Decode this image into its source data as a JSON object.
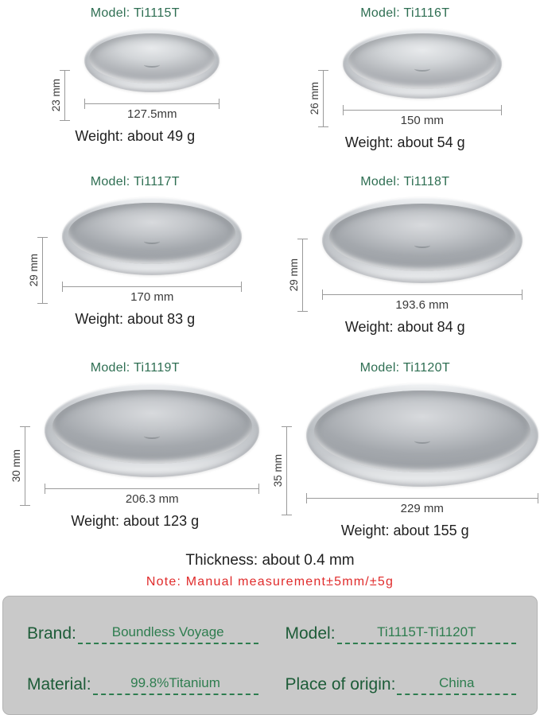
{
  "colors": {
    "model_title_green": "#2e6e52",
    "label_green": "#1d5c38",
    "value_green": "#2e7d4f",
    "note_red": "#e02b2b",
    "dimension_gray": "#9a9a9a",
    "text_dark": "#1f1f1f",
    "info_box_bg": "#c9c9c9"
  },
  "plates": [
    {
      "model_label": "Model: Ti1115T",
      "height": "23 mm",
      "diameter": "127.5mm",
      "weight": "Weight: about 49 g"
    },
    {
      "model_label": "Model: Ti1116T",
      "height": "26 mm",
      "diameter": "150 mm",
      "weight": "Weight: about 54 g"
    },
    {
      "model_label": "Model: Ti1117T",
      "height": "29 mm",
      "diameter": "170 mm",
      "weight": "Weight: about 83 g"
    },
    {
      "model_label": "Model: Ti1118T",
      "height": "29 mm",
      "diameter": "193.6 mm",
      "weight": "Weight: about 84 g"
    },
    {
      "model_label": "Model: Ti1119T",
      "height": "30 mm",
      "diameter": "206.3 mm",
      "weight": "Weight: about 123 g"
    },
    {
      "model_label": "Model: Ti1120T",
      "height": "35 mm",
      "diameter": "229 mm",
      "weight": "Weight: about 155 g"
    }
  ],
  "footer": {
    "thickness": "Thickness: about 0.4 mm",
    "note": "Note: Manual measurement±5mm/±5g"
  },
  "info_box": {
    "brand_label": "Brand:",
    "brand_value": "Boundless Voyage",
    "model_label": "Model:",
    "model_value": "Ti1115T-Ti1120T",
    "material_label": "Material:",
    "material_value": "99.8%Titanium",
    "origin_label": "Place of origin:",
    "origin_value": "China"
  }
}
